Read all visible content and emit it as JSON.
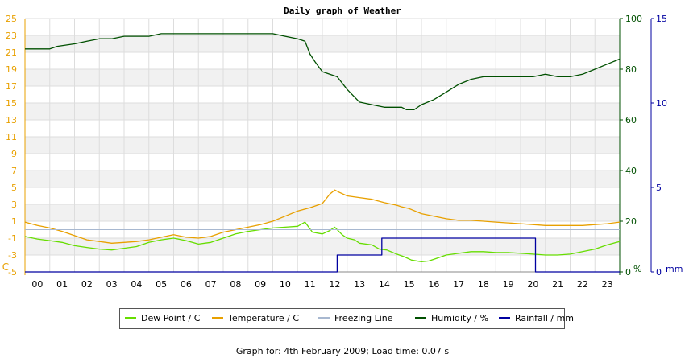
{
  "chart_data": {
    "type": "line",
    "title": "Daily graph of Weather",
    "x_label_hours": [
      "00",
      "01",
      "02",
      "03",
      "04",
      "05",
      "06",
      "07",
      "08",
      "09",
      "10",
      "11",
      "12",
      "13",
      "14",
      "15",
      "16",
      "17",
      "18",
      "19",
      "20",
      "21",
      "22",
      "23"
    ],
    "y_left": {
      "unit": "C",
      "ticks": [
        -5,
        -3,
        -1,
        1,
        3,
        5,
        7,
        9,
        11,
        13,
        15,
        17,
        19,
        21,
        23,
        25
      ],
      "range": [
        -5,
        25
      ],
      "color": "#e8a000"
    },
    "y_right_humidity": {
      "unit": "%",
      "ticks": [
        0,
        20,
        40,
        60,
        80,
        100
      ],
      "range": [
        0,
        100
      ],
      "color": "#005000"
    },
    "y_right_rain": {
      "unit": "mm",
      "ticks": [
        0,
        5,
        10,
        15
      ],
      "range": [
        0,
        15
      ],
      "color": "#0000a0"
    },
    "grid": true,
    "series": [
      {
        "name": "Dew Point / C",
        "color": "#66dd00",
        "x": [
          0,
          0.5,
          1,
          1.5,
          2,
          2.5,
          3,
          3.5,
          4,
          4.5,
          5,
          5.5,
          6,
          6.5,
          7,
          7.5,
          8,
          8.5,
          9,
          9.5,
          10,
          10.5,
          11,
          11.3,
          11.6,
          12,
          12.3,
          12.5,
          12.8,
          13,
          13.3,
          13.5,
          14,
          14.3,
          14.6,
          15,
          15.3,
          15.6,
          16,
          16.3,
          16.6,
          17,
          17.5,
          18,
          18.5,
          19,
          19.5,
          20,
          20.5,
          21,
          21.5,
          22,
          22.5,
          23,
          23.5,
          24
        ],
        "y": [
          -0.8,
          -1.1,
          -1.3,
          -1.5,
          -1.9,
          -2.1,
          -2.3,
          -2.4,
          -2.2,
          -2.0,
          -1.5,
          -1.2,
          -1.0,
          -1.3,
          -1.7,
          -1.5,
          -1.0,
          -0.5,
          -0.2,
          0.0,
          0.2,
          0.3,
          0.4,
          0.9,
          -0.3,
          -0.5,
          -0.1,
          0.3,
          -0.6,
          -1.0,
          -1.2,
          -1.6,
          -1.8,
          -2.3,
          -2.4,
          -2.9,
          -3.2,
          -3.6,
          -3.8,
          -3.7,
          -3.4,
          -3.0,
          -2.8,
          -2.6,
          -2.6,
          -2.7,
          -2.7,
          -2.8,
          -2.9,
          -3.0,
          -3.0,
          -2.9,
          -2.6,
          -2.3,
          -1.8,
          -1.4
        ]
      },
      {
        "name": "Temperature / C",
        "color": "#e8a000",
        "x": [
          0,
          0.5,
          1,
          1.5,
          2,
          2.5,
          3,
          3.5,
          4,
          4.5,
          5,
          5.5,
          6,
          6.5,
          7,
          7.5,
          8,
          8.5,
          9,
          9.5,
          10,
          10.5,
          11,
          11.5,
          12,
          12.3,
          12.5,
          12.7,
          13,
          13.5,
          14,
          14.5,
          15,
          15.2,
          15.5,
          16,
          16.5,
          17,
          17.5,
          18,
          18.5,
          19,
          19.5,
          20,
          20.5,
          21,
          21.5,
          22,
          22.5,
          23,
          23.5,
          24
        ],
        "y": [
          0.9,
          0.5,
          0.2,
          -0.2,
          -0.7,
          -1.2,
          -1.4,
          -1.6,
          -1.5,
          -1.4,
          -1.2,
          -0.9,
          -0.6,
          -0.9,
          -1.0,
          -0.8,
          -0.3,
          0.0,
          0.3,
          0.6,
          1.0,
          1.6,
          2.2,
          2.6,
          3.1,
          4.2,
          4.7,
          4.4,
          4.0,
          3.8,
          3.6,
          3.2,
          2.9,
          2.7,
          2.5,
          1.9,
          1.6,
          1.3,
          1.1,
          1.1,
          1.0,
          0.9,
          0.8,
          0.7,
          0.6,
          0.5,
          0.5,
          0.5,
          0.5,
          0.6,
          0.7,
          0.9
        ]
      },
      {
        "name": "Freezing Line",
        "color": "#a8b8d0",
        "x": [
          0,
          24
        ],
        "y": [
          0,
          0
        ]
      },
      {
        "name": "Humidity / %",
        "color": "#005000",
        "x": [
          0,
          1,
          1.3,
          2,
          2.5,
          3,
          3.5,
          4,
          4.5,
          5,
          5.5,
          6,
          7,
          8,
          9,
          10,
          10.5,
          11,
          11.3,
          11.5,
          11.7,
          12,
          12.3,
          12.6,
          13,
          13.5,
          14,
          14.5,
          15,
          15.2,
          15.4,
          15.5,
          15.7,
          16,
          16.5,
          17,
          17.5,
          18,
          18.5,
          19,
          19.5,
          20,
          20.5,
          21,
          21.5,
          22,
          22.5,
          23,
          23.5,
          24
        ],
        "y": [
          88,
          88,
          89,
          90,
          91,
          92,
          92,
          93,
          93,
          93,
          94,
          94,
          94,
          94,
          94,
          94,
          93,
          92,
          91,
          86,
          83,
          79,
          78,
          77,
          72,
          67,
          66,
          65,
          65,
          65,
          64,
          64,
          64,
          66,
          68,
          71,
          74,
          76,
          77,
          77,
          77,
          77,
          77,
          78,
          77,
          77,
          78,
          80,
          82,
          84
        ]
      },
      {
        "name": "Rainfall / mm",
        "color": "#0000a0",
        "step": true,
        "x": [
          0,
          12.6,
          12.6,
          14.4,
          14.4,
          20.6,
          20.6,
          24
        ],
        "y": [
          0,
          0,
          1,
          1,
          2,
          2,
          0,
          0
        ]
      }
    ],
    "legend": "bottom",
    "footer": "Graph for: 4th February 2009; Load time: 0.07 s"
  }
}
